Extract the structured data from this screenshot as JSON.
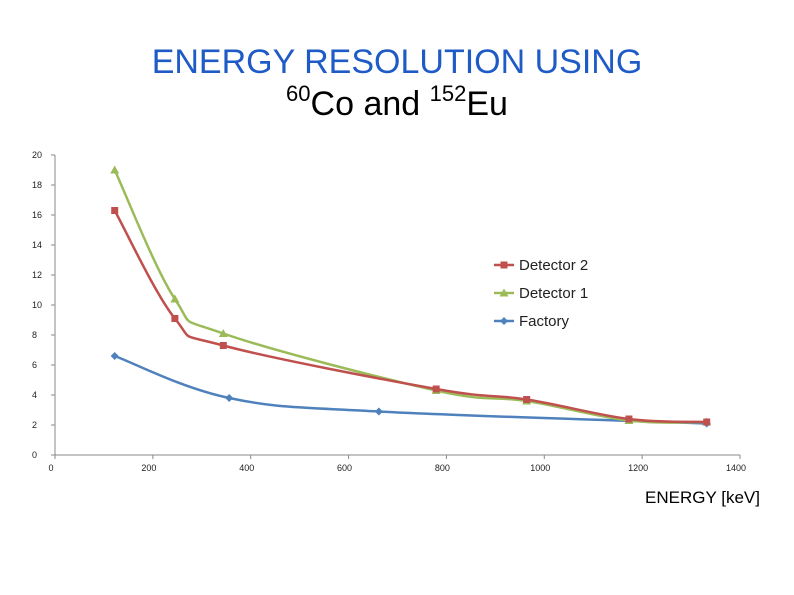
{
  "header": {
    "title_line1": "ENERGY RESOLUTION USING",
    "iso1_mass": "60",
    "iso1_sym": "Co",
    "and_text": " and ",
    "iso2_mass": "152",
    "iso2_sym": "Eu"
  },
  "chart_data": {
    "type": "line",
    "title": "ENERGY RESOLUTION USING 60Co and 152Eu",
    "xlabel": "ENERGY [keV]",
    "ylabel": "",
    "xlim": [
      0,
      1400
    ],
    "ylim": [
      0,
      20
    ],
    "x_ticks": [
      0,
      200,
      400,
      600,
      800,
      1000,
      1200,
      1400
    ],
    "y_ticks": [
      0,
      2,
      4,
      6,
      8,
      10,
      12,
      14,
      16,
      18,
      20
    ],
    "grid": false,
    "legend_position": "right",
    "series": [
      {
        "name": "Detector 2",
        "color": "#c0504d",
        "marker": "square",
        "x": [
          122,
          245,
          344,
          779,
          964,
          1173,
          1332
        ],
        "y": [
          16.3,
          9.1,
          7.3,
          4.4,
          3.7,
          2.4,
          2.2
        ]
      },
      {
        "name": "Detector 1",
        "color": "#9bbb59",
        "marker": "triangle",
        "x": [
          122,
          245,
          344,
          779,
          964,
          1173,
          1332
        ],
        "y": [
          19.0,
          10.4,
          8.1,
          4.3,
          3.6,
          2.3,
          2.2
        ]
      },
      {
        "name": "Factory",
        "color": "#4f81bd",
        "marker": "diamond",
        "x": [
          122,
          356,
          662,
          1332
        ],
        "y": [
          6.6,
          3.8,
          2.9,
          2.1
        ]
      }
    ]
  }
}
